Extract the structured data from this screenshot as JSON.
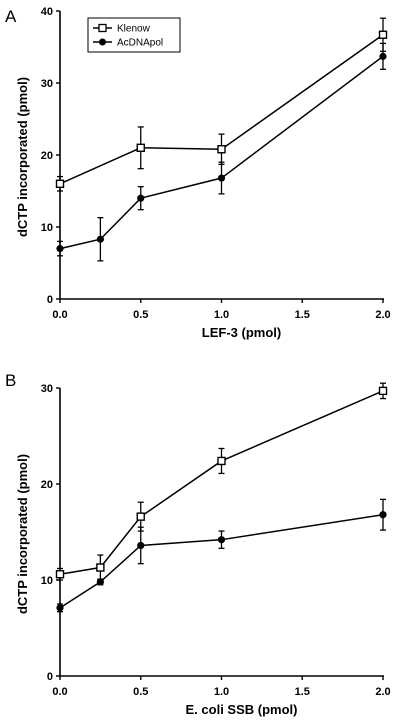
{
  "chart_data": [
    {
      "type": "line",
      "panel_label": "A",
      "xlabel": "LEF-3 (pmol)",
      "ylabel": "dCTP incorporated (pmol)",
      "xlim": [
        0,
        2.0
      ],
      "ylim": [
        0,
        40
      ],
      "xticks": [
        "0.0",
        "0.5",
        "1.0",
        "1.5",
        "2.0"
      ],
      "yticks": [
        "0",
        "10",
        "20",
        "30",
        "40"
      ],
      "legend": {
        "position": "top-left",
        "entries": [
          "Klenow",
          "AcDNApol"
        ]
      },
      "series": [
        {
          "name": "Klenow",
          "marker": "open-square",
          "x": [
            0.0,
            0.5,
            1.0,
            2.0
          ],
          "y": [
            16.0,
            21.0,
            20.8,
            36.7
          ],
          "err": [
            1.0,
            2.9,
            2.1,
            2.3
          ]
        },
        {
          "name": "AcDNApol",
          "marker": "filled-circle",
          "x": [
            0.0,
            0.25,
            0.5,
            1.0,
            2.0
          ],
          "y": [
            7.0,
            8.3,
            14.0,
            16.8,
            33.7
          ],
          "err": [
            1.0,
            3.0,
            1.6,
            2.2,
            1.8
          ]
        }
      ]
    },
    {
      "type": "line",
      "panel_label": "B",
      "xlabel": "E. coli SSB (pmol)",
      "ylabel": "dCTP incorporated (pmol)",
      "xlim": [
        0,
        2.0
      ],
      "ylim": [
        0,
        30
      ],
      "xticks": [
        "0.0",
        "0.5",
        "1.0",
        "1.5",
        "2.0"
      ],
      "yticks": [
        "0",
        "10",
        "20",
        "30"
      ],
      "legend": null,
      "series": [
        {
          "name": "Klenow",
          "marker": "open-square",
          "x": [
            0.0,
            0.25,
            0.5,
            1.0,
            2.0
          ],
          "y": [
            10.6,
            11.3,
            16.6,
            22.4,
            29.7
          ],
          "err": [
            0.6,
            1.3,
            1.5,
            1.3,
            0.8
          ]
        },
        {
          "name": "AcDNApol",
          "marker": "filled-circle",
          "x": [
            0.0,
            0.25,
            0.5,
            1.0,
            2.0
          ],
          "y": [
            7.1,
            9.8,
            13.6,
            14.2,
            16.8
          ],
          "err": [
            0.4,
            0.3,
            1.9,
            0.9,
            1.6
          ]
        }
      ]
    }
  ]
}
